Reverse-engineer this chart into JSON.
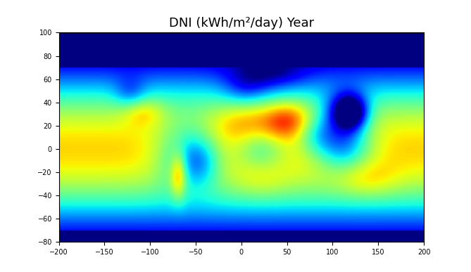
{
  "title": "DNI (kWh/m²/day) Year",
  "title_fontsize": 13,
  "xlim": [
    -200,
    200
  ],
  "ylim": [
    -80,
    100
  ],
  "xticks": [
    -200,
    -150,
    -100,
    -50,
    0,
    50,
    100,
    150,
    200
  ],
  "yticks": [
    -80,
    -60,
    -40,
    -20,
    0,
    20,
    40,
    60,
    80,
    100
  ],
  "colormap": "jet",
  "vmin": 0,
  "vmax": 11,
  "background_color": "#ffffff",
  "coastline_color": "#000000",
  "coastline_linewidth": 0.5,
  "figsize": [
    6.69,
    3.87
  ],
  "dpi": 100
}
